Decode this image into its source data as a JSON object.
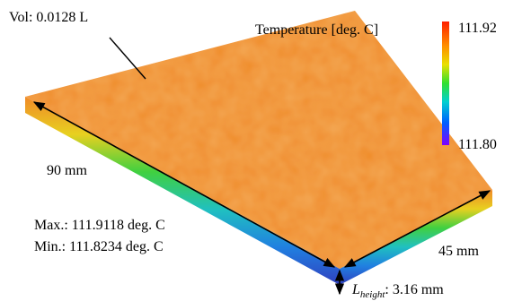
{
  "annotations": {
    "volume": "Vol: 0.0128 L",
    "length": "90 mm",
    "width": "45 mm",
    "max": "Max.: 111.9118 deg. C",
    "min": "Min.: 111.8234 deg. C",
    "height_symbol": "L",
    "height_subscript": "height",
    "height_value": ": 3.16 mm"
  },
  "colorbar": {
    "title": "Temperature [deg. C]",
    "max": "111.92",
    "min": "111.80"
  }
}
